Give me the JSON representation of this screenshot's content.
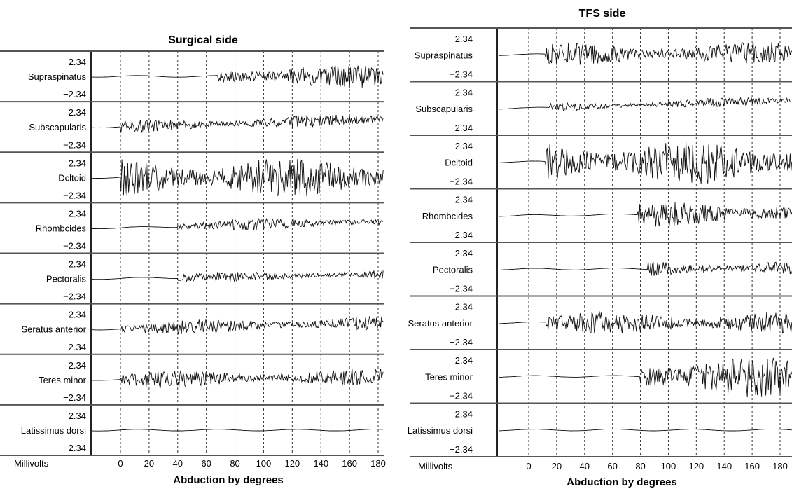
{
  "chart_data": [
    {
      "type": "line",
      "title": "Surgical side",
      "xlabel": "Abduction by degrees",
      "ylabel": "Millivolts",
      "x_ticks": [
        0,
        20,
        40,
        60,
        80,
        100,
        120,
        140,
        160,
        180
      ],
      "xlim": [
        0,
        180
      ],
      "grid": "vertical dashed",
      "channels": [
        {
          "name": "Supraspinatus",
          "ymax": "2.34",
          "ymin": "−2.34",
          "onset_deg": 68,
          "amplitude": 0.55,
          "drift": 0
        },
        {
          "name": "Subscapularis",
          "ymax": "2.34",
          "ymin": "−2.34",
          "onset_deg": 0,
          "amplitude": 0.3,
          "drift": 0.35
        },
        {
          "name": "Dcltoid",
          "ymax": "2.34",
          "ymin": "−2.34",
          "onset_deg": 0,
          "amplitude": 0.95,
          "drift": 0
        },
        {
          "name": "Rhombcides",
          "ymax": "2.34",
          "ymin": "−2.34",
          "onset_deg": 40,
          "amplitude": 0.28,
          "drift": 0.3
        },
        {
          "name": "Pectoralis",
          "ymax": "2.34",
          "ymin": "−2.34",
          "onset_deg": 40,
          "amplitude": 0.25,
          "drift": 0.2
        },
        {
          "name": "Seratus anterior",
          "ymax": "2.34",
          "ymin": "−2.34",
          "onset_deg": 0,
          "amplitude": 0.35,
          "drift": 0.3
        },
        {
          "name": "Teres minor",
          "ymax": "2.34",
          "ymin": "−2.34",
          "onset_deg": 0,
          "amplitude": 0.4,
          "drift": 0.15
        },
        {
          "name": "Latissimus dorsi",
          "ymax": "2.34",
          "ymin": "−2.34",
          "onset_deg": 180,
          "amplitude": 0,
          "drift": 0
        }
      ]
    },
    {
      "type": "line",
      "title": "TFS side",
      "xlabel": "Abduction by degrees",
      "ylabel": "Millivolts",
      "x_ticks": [
        0,
        20,
        40,
        60,
        80,
        100,
        120,
        140,
        160,
        180
      ],
      "xlim": [
        0,
        180
      ],
      "grid": "vertical dashed",
      "channels": [
        {
          "name": "Supraspinatus",
          "ymax": "2.34",
          "ymin": "−2.34",
          "onset_deg": 12,
          "amplitude": 0.5,
          "drift": 0.1
        },
        {
          "name": "Subscapularis",
          "ymax": "2.34",
          "ymin": "−2.34",
          "onset_deg": 15,
          "amplitude": 0.2,
          "drift": 0.35
        },
        {
          "name": "Dcltoid",
          "ymax": "2.34",
          "ymin": "−2.34",
          "onset_deg": 12,
          "amplitude": 1.0,
          "drift": 0
        },
        {
          "name": "Rhombcides",
          "ymax": "2.34",
          "ymin": "−2.34",
          "onset_deg": 78,
          "amplitude": 0.55,
          "drift": 0.1
        },
        {
          "name": "Pectoralis",
          "ymax": "2.34",
          "ymin": "−2.34",
          "onset_deg": 85,
          "amplitude": 0.35,
          "drift": 0.05
        },
        {
          "name": "Seratus anterior",
          "ymax": "2.34",
          "ymin": "−2.34",
          "onset_deg": 12,
          "amplitude": 0.5,
          "drift": 0
        },
        {
          "name": "Teres minor",
          "ymax": "2.34",
          "ymin": "−2.34",
          "onset_deg": 80,
          "amplitude": 0.95,
          "drift": 0
        },
        {
          "name": "Latissimus dorsi",
          "ymax": "2.34",
          "ymin": "−2.34",
          "onset_deg": 180,
          "amplitude": 0,
          "drift": 0
        }
      ]
    }
  ]
}
